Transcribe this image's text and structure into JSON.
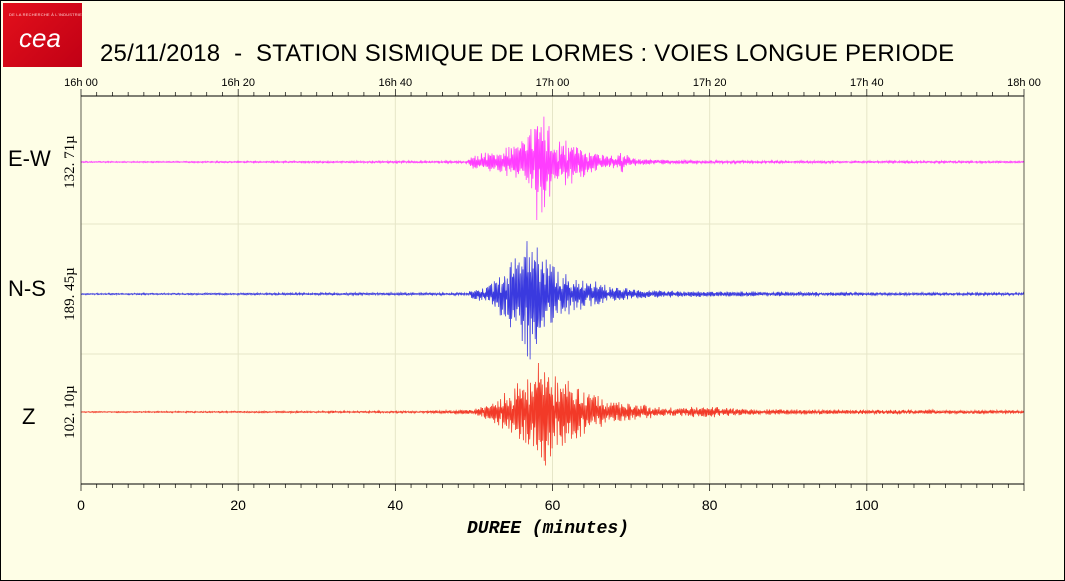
{
  "logo": {
    "text": "cea",
    "tagline": "DE LA RECHERCHE À L'INDUSTRIE"
  },
  "title": "25/11/2018  -  STATION SISMIQUE DE LORMES : VOIES LONGUE PERIODE",
  "colors": {
    "background": "#fefee6",
    "ew": "#ff3dff",
    "ns": "#3a3adf",
    "z": "#f23a28",
    "grid": "#e6e6c8"
  },
  "chart_data": {
    "type": "line",
    "title": "25/11/2018  -  STATION SISMIQUE DE LORMES : VOIES LONGUE PERIODE",
    "xlabel": "DUREE (minutes)",
    "xlim": [
      0,
      120
    ],
    "x_ticks": [
      0,
      20,
      40,
      60,
      80,
      100
    ],
    "top_time_ticks": [
      "16h 00",
      "16h 20",
      "16h 40",
      "17h 00",
      "17h 20",
      "17h 40",
      "18h 00"
    ],
    "grid": true,
    "series": [
      {
        "name": "E-W",
        "amplitude_label": "132. 71µ",
        "color": "#ff3dff",
        "envelope": [
          [
            0,
            0.01
          ],
          [
            49,
            0.02
          ],
          [
            50,
            0.12
          ],
          [
            51,
            0.18
          ],
          [
            53,
            0.18
          ],
          [
            55,
            0.3
          ],
          [
            57,
            0.5
          ],
          [
            58,
            1.0
          ],
          [
            59,
            0.85
          ],
          [
            60,
            0.5
          ],
          [
            62,
            0.42
          ],
          [
            64,
            0.25
          ],
          [
            66,
            0.12
          ],
          [
            68,
            0.1
          ],
          [
            69,
            0.2
          ],
          [
            70,
            0.08
          ],
          [
            73,
            0.04
          ],
          [
            80,
            0.025
          ],
          [
            100,
            0.02
          ],
          [
            120,
            0.015
          ]
        ]
      },
      {
        "name": "N-S",
        "amplitude_label": "189. 45µ",
        "color": "#3a3adf",
        "envelope": [
          [
            0,
            0.01
          ],
          [
            49,
            0.02
          ],
          [
            50,
            0.08
          ],
          [
            52,
            0.14
          ],
          [
            54,
            0.45
          ],
          [
            56,
            0.75
          ],
          [
            57,
            1.0
          ],
          [
            58,
            0.9
          ],
          [
            59,
            0.6
          ],
          [
            61,
            0.35
          ],
          [
            63,
            0.25
          ],
          [
            65,
            0.2
          ],
          [
            68,
            0.1
          ],
          [
            72,
            0.06
          ],
          [
            80,
            0.04
          ],
          [
            100,
            0.025
          ],
          [
            120,
            0.02
          ]
        ]
      },
      {
        "name": "Z",
        "amplitude_label": "102. 10µ",
        "color": "#f23a28",
        "envelope": [
          [
            0,
            0.01
          ],
          [
            44,
            0.02
          ],
          [
            50,
            0.05
          ],
          [
            52,
            0.15
          ],
          [
            54,
            0.35
          ],
          [
            56,
            0.6
          ],
          [
            58,
            0.9
          ],
          [
            59,
            1.0
          ],
          [
            60,
            0.8
          ],
          [
            62,
            0.65
          ],
          [
            64,
            0.45
          ],
          [
            66,
            0.3
          ],
          [
            68,
            0.22
          ],
          [
            70,
            0.15
          ],
          [
            75,
            0.08
          ],
          [
            80,
            0.1
          ],
          [
            85,
            0.05
          ],
          [
            100,
            0.04
          ],
          [
            120,
            0.03
          ]
        ]
      }
    ]
  }
}
